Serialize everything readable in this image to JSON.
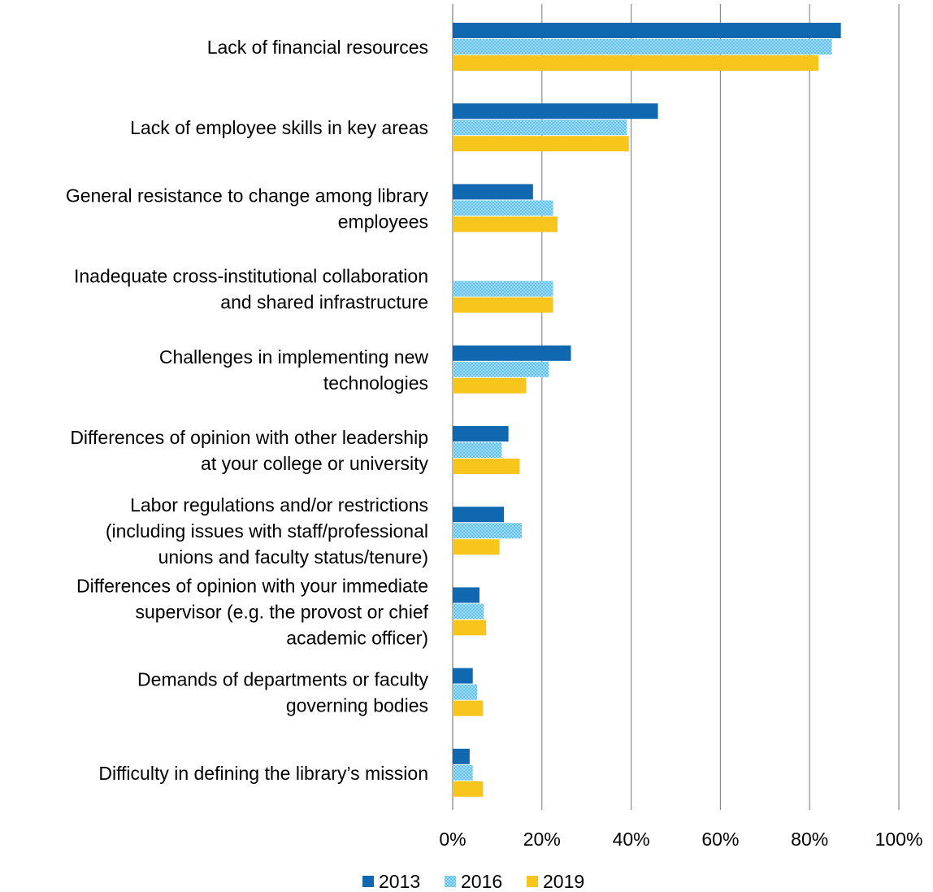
{
  "chart_data": {
    "type": "bar",
    "orientation": "horizontal",
    "categories": [
      [
        "Lack of financial resources"
      ],
      [
        "Lack of employee skills in key areas"
      ],
      [
        "General resistance to change among library",
        "employees"
      ],
      [
        "Inadequate cross-institutional collaboration",
        "and shared infrastructure"
      ],
      [
        "Challenges in implementing new",
        "technologies"
      ],
      [
        "Differences of opinion with other leadership",
        "at your college or university"
      ],
      [
        "Labor regulations and/or restrictions",
        "(including issues with staff/professional",
        "unions and faculty status/tenure)"
      ],
      [
        "Differences of opinion with your immediate",
        "supervisor (e.g. the provost or chief",
        "academic officer)"
      ],
      [
        "Demands of departments or faculty",
        "governing bodies"
      ],
      [
        "Difficulty in defining the library’s mission"
      ]
    ],
    "series": [
      {
        "name": "2013",
        "color": "#1068b0",
        "pattern": "solid",
        "values": [
          87,
          46,
          18,
          null,
          26.5,
          12.5,
          11.5,
          6,
          4.5,
          3.8
        ]
      },
      {
        "name": "2016",
        "color": "#5bc0eb",
        "pattern": "dotted",
        "values": [
          85,
          39,
          22.5,
          22.5,
          21.5,
          11,
          15.5,
          7,
          5.5,
          4.5
        ]
      },
      {
        "name": "2019",
        "color": "#f8c51c",
        "pattern": "solid",
        "values": [
          82,
          39.5,
          23.5,
          22.5,
          16.5,
          15,
          10.5,
          7.5,
          6.8,
          6.8
        ]
      }
    ],
    "x_ticks": [
      "0%",
      "20%",
      "40%",
      "60%",
      "80%",
      "100%"
    ],
    "xlim": [
      0,
      100
    ],
    "grid": "vertical",
    "legend_position": "bottom",
    "title": "",
    "xlabel": "",
    "ylabel": ""
  }
}
